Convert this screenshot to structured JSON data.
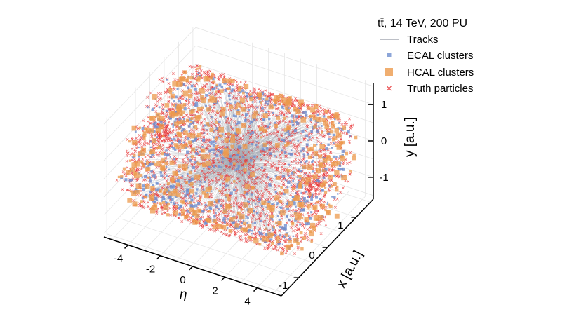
{
  "chart_data": {
    "type": "scatter",
    "projection": "3d",
    "grid": true,
    "legend_position": "top-right",
    "legend": {
      "title": "tt̄, 14 TeV, 200 PU",
      "entries": [
        {
          "name": "Tracks",
          "marker": "line",
          "color": "#a6aab4"
        },
        {
          "name": "ECAL clusters",
          "marker": "square",
          "color": "#6f8fce"
        },
        {
          "name": "HCAL clusters",
          "marker": "square",
          "color": "#ec9a4c"
        },
        {
          "name": "Truth particles",
          "marker": "x",
          "color": "#e8383a"
        }
      ]
    },
    "axes": {
      "eta": {
        "label": "η",
        "ticks": [
          "-4",
          "-2",
          "0",
          "2",
          "4"
        ],
        "tick_values": [
          -4,
          -2,
          0,
          2,
          4
        ],
        "range": [
          -5.5,
          5.5
        ]
      },
      "x": {
        "label": "x [a.u.]",
        "ticks": [
          "-1",
          "0",
          "1"
        ],
        "tick_values": [
          -1,
          0,
          1
        ],
        "range": [
          -1.6,
          1.6
        ]
      },
      "y": {
        "label": "y [a.u.]",
        "ticks": [
          "-1",
          "0",
          "1"
        ],
        "tick_values": [
          -1,
          0,
          1
        ],
        "range": [
          -1.6,
          1.6
        ]
      }
    }
  }
}
